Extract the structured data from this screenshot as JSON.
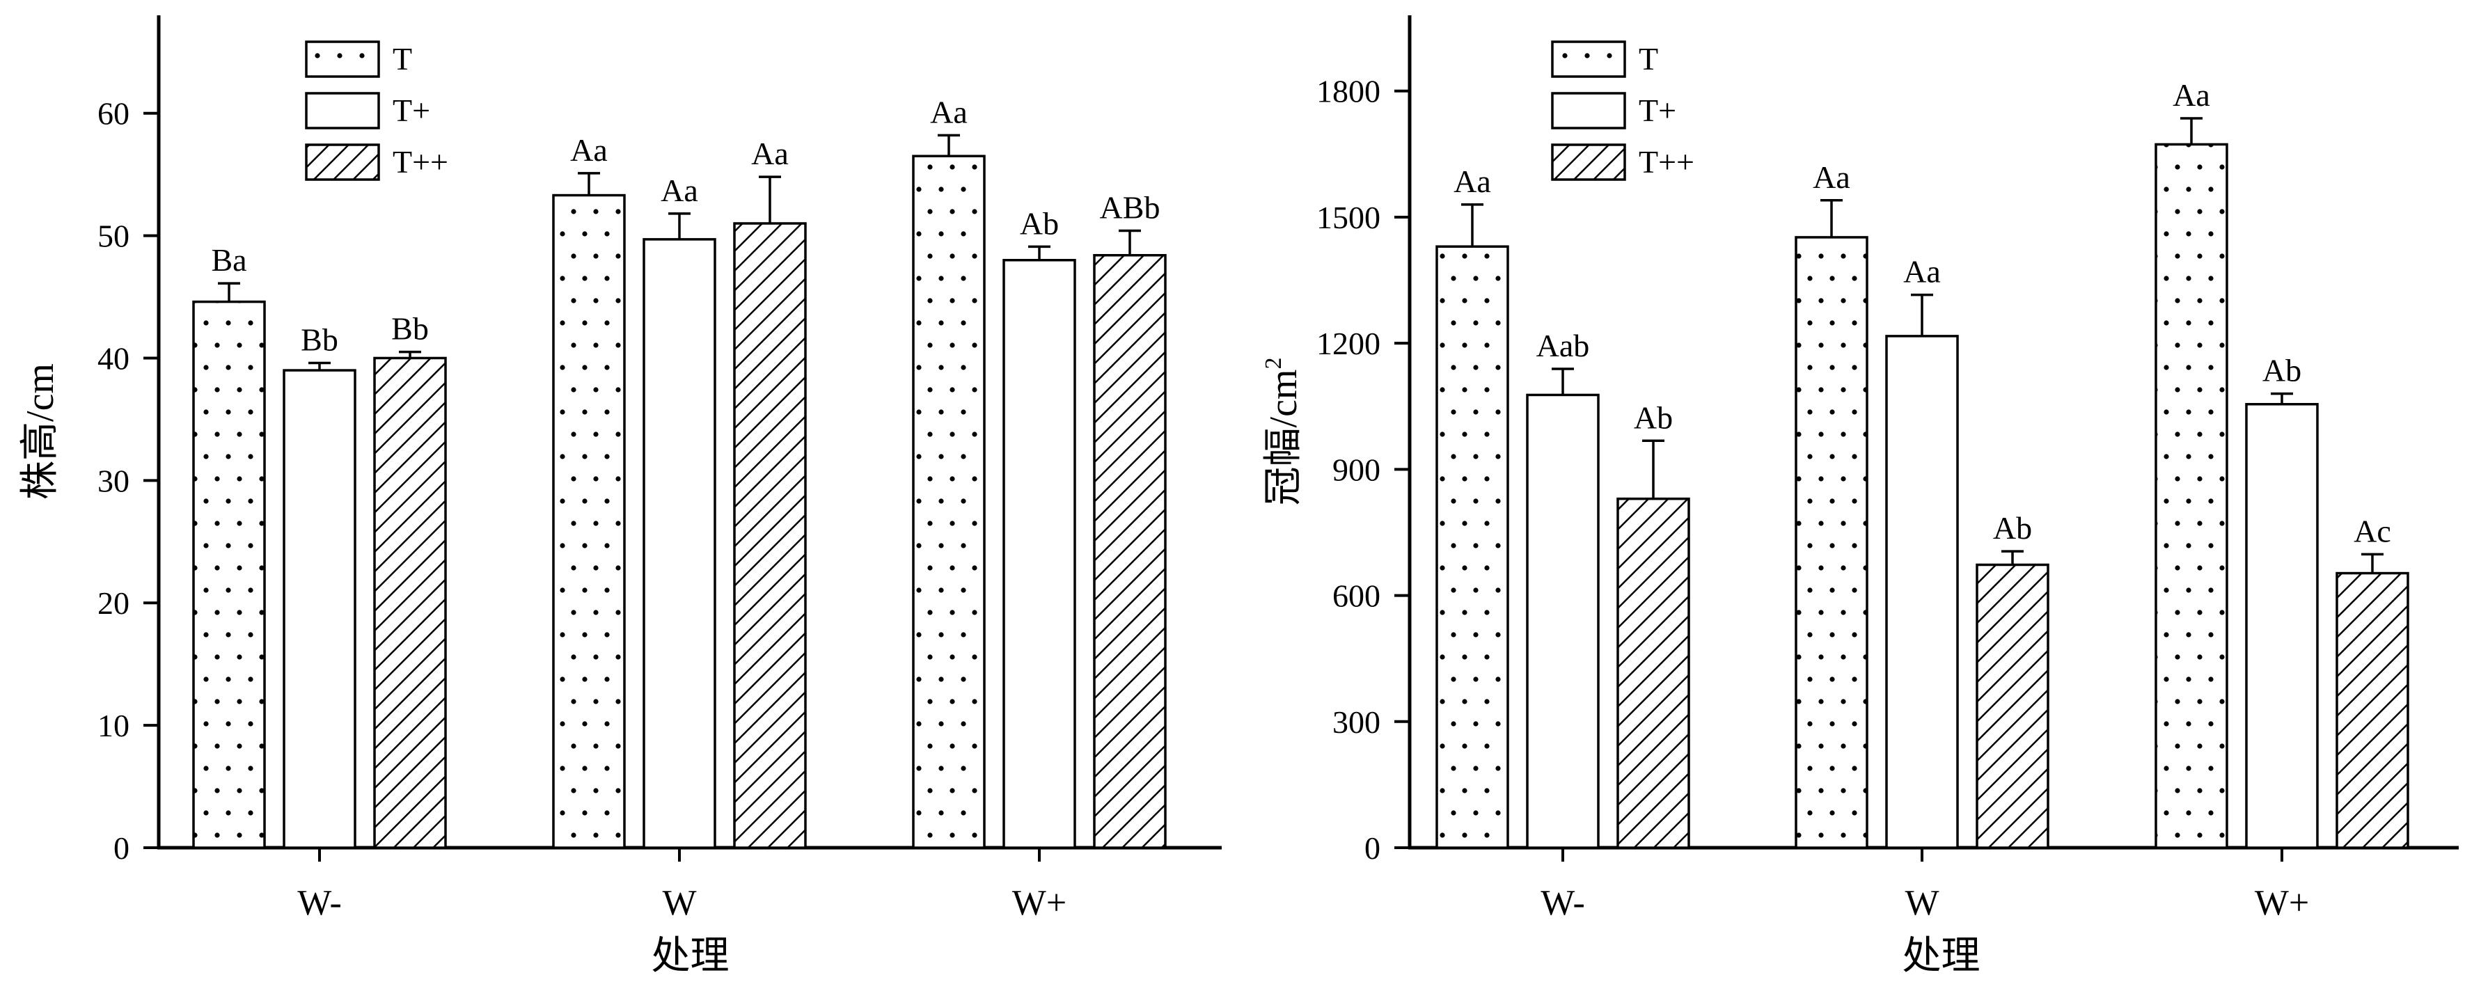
{
  "colors": {
    "bar_stroke": "#000000",
    "bar_fill": "#ffffff",
    "pattern_ink": "#000000"
  },
  "chart_data": [
    {
      "type": "bar",
      "categories": [
        "W-",
        "W",
        "W+"
      ],
      "xlabel": "处理",
      "ylabel": "株高/cm",
      "ylim": [
        0,
        68
      ],
      "yticks": [
        0,
        10,
        20,
        30,
        40,
        50,
        60
      ],
      "legend": {
        "placement": "top-left",
        "entries": [
          "T",
          "T+",
          "T++"
        ]
      },
      "grid": false,
      "series": [
        {
          "name": "T",
          "pattern": "dots",
          "values": [
            44.6,
            53.3,
            56.5
          ],
          "errors": [
            1.5,
            1.8,
            1.7
          ],
          "labels": [
            "Ba",
            "Aa",
            "Aa"
          ]
        },
        {
          "name": "T+",
          "pattern": "plain",
          "values": [
            39.0,
            49.7,
            48.0
          ],
          "errors": [
            0.6,
            2.1,
            1.1
          ],
          "labels": [
            "Bb",
            "Aa",
            "Ab"
          ]
        },
        {
          "name": "T++",
          "pattern": "hatch",
          "values": [
            40.0,
            51.0,
            48.4
          ],
          "errors": [
            0.5,
            3.8,
            2.0
          ],
          "labels": [
            "Bb",
            "Aa",
            "ABb"
          ]
        }
      ]
    },
    {
      "type": "bar",
      "categories": [
        "W-",
        "W",
        "W+"
      ],
      "xlabel": "处理",
      "ylabel": "冠幅/cm",
      "ylabel_sup": "2",
      "ylim": [
        0,
        1980
      ],
      "yticks": [
        0,
        300,
        600,
        900,
        1200,
        1500,
        1800
      ],
      "legend": {
        "placement": "top-left",
        "entries": [
          "T",
          "T+",
          "T++"
        ]
      },
      "grid": false,
      "series": [
        {
          "name": "T",
          "pattern": "dots",
          "values": [
            1430,
            1452,
            1673
          ],
          "errors": [
            100,
            88,
            62
          ],
          "labels": [
            "Aa",
            "Aa",
            "Aa"
          ]
        },
        {
          "name": "T+",
          "pattern": "plain",
          "values": [
            1077,
            1217,
            1055
          ],
          "errors": [
            62,
            98,
            25
          ],
          "labels": [
            "Aab",
            "Aa",
            "Ab"
          ]
        },
        {
          "name": "T++",
          "pattern": "hatch",
          "values": [
            830,
            673,
            653
          ],
          "errors": [
            138,
            32,
            45
          ],
          "labels": [
            "Ab",
            "Ab",
            "Ac"
          ]
        }
      ]
    }
  ]
}
